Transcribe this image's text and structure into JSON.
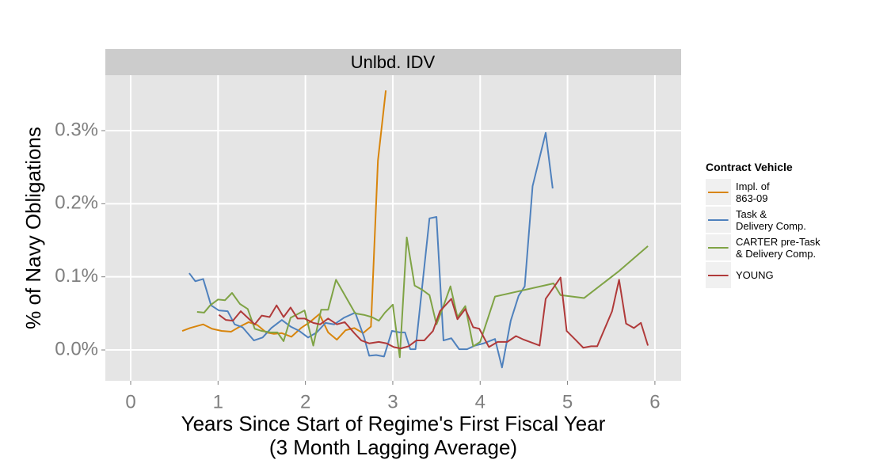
{
  "chart_data": {
    "type": "line",
    "strip": "Unlbd. IDV",
    "xlabel": "Years Since Start of Regime's First Fiscal Year\n(3 Month Lagging Average)",
    "ylabel": "% of Navy Obligations",
    "legend_title": "Contract Vehicle",
    "legend": "right",
    "grid": true,
    "xlim": [
      -0.29,
      6.3
    ],
    "xticks": [
      0,
      1,
      2,
      3,
      4,
      5,
      6
    ],
    "ylim": [
      -0.0422,
      0.3758
    ],
    "yticks": [
      {
        "value": 0,
        "label": "0.0%"
      },
      {
        "value": 0.1,
        "label": "0.1%"
      },
      {
        "value": 0.2,
        "label": "0.2%"
      },
      {
        "value": 0.3,
        "label": "0.3%"
      }
    ],
    "series": [
      {
        "name": "Impl. of\n863-09",
        "color": "#D8850C",
        "x": [
          0.59,
          0.68,
          0.83,
          0.93,
          1.04,
          1.15,
          1.25,
          1.35,
          1.45,
          1.55,
          1.64,
          1.73,
          1.84,
          1.95,
          2.05,
          2.16,
          2.26,
          2.36,
          2.46,
          2.56,
          2.66,
          2.75,
          2.83,
          2.92
        ],
        "values": [
          0.026,
          0.03,
          0.035,
          0.029,
          0.026,
          0.025,
          0.032,
          0.038,
          0.034,
          0.024,
          0.022,
          0.023,
          0.018,
          0.03,
          0.038,
          0.049,
          0.024,
          0.014,
          0.027,
          0.03,
          0.023,
          0.032,
          0.259,
          0.355
        ]
      },
      {
        "name": "Task &\nDelivery Comp.",
        "color": "#4F81BD",
        "x": [
          0.67,
          0.74,
          0.83,
          0.92,
          1.01,
          1.11,
          1.19,
          1.28,
          1.41,
          1.51,
          1.61,
          1.73,
          1.83,
          1.93,
          2.03,
          2.13,
          2.23,
          2.33,
          2.44,
          2.57,
          2.67,
          2.73,
          2.81,
          2.9,
          2.99,
          3.08,
          3.14,
          3.2,
          3.26,
          3.42,
          3.5,
          3.58,
          3.67,
          3.76,
          3.85,
          3.94,
          4.04,
          4.17,
          4.25,
          4.35,
          4.44,
          4.51,
          4.6,
          4.75,
          4.83
        ],
        "values": [
          0.105,
          0.094,
          0.097,
          0.061,
          0.054,
          0.053,
          0.035,
          0.031,
          0.013,
          0.017,
          0.03,
          0.041,
          0.032,
          0.026,
          0.017,
          0.024,
          0.037,
          0.035,
          0.044,
          0.051,
          0.018,
          -0.008,
          -0.007,
          -0.009,
          0.026,
          0.024,
          0.024,
          0.001,
          0.001,
          0.18,
          0.182,
          0.013,
          0.016,
          0.001,
          0.001,
          0.006,
          0.009,
          0.015,
          -0.024,
          0.04,
          0.074,
          0.087,
          0.224,
          0.297,
          0.221
        ]
      },
      {
        "name": "CARTER pre-Task\n& Delivery Comp.",
        "color": "#7FA345",
        "x": [
          0.76,
          0.84,
          0.91,
          1.0,
          1.08,
          1.16,
          1.25,
          1.34,
          1.42,
          1.5,
          1.6,
          1.68,
          1.75,
          1.83,
          1.99,
          2.09,
          2.18,
          2.26,
          2.35,
          2.57,
          2.67,
          2.76,
          2.84,
          2.91,
          3.0,
          3.08,
          3.16,
          3.25,
          3.34,
          3.42,
          3.5,
          3.58,
          3.66,
          3.74,
          3.83,
          3.92,
          4.0,
          4.17,
          4.84,
          4.92,
          5.19,
          5.58,
          5.92
        ],
        "values": [
          0.052,
          0.051,
          0.061,
          0.069,
          0.068,
          0.078,
          0.063,
          0.056,
          0.029,
          0.026,
          0.024,
          0.024,
          0.012,
          0.044,
          0.054,
          0.006,
          0.055,
          0.055,
          0.096,
          0.05,
          0.048,
          0.045,
          0.04,
          0.051,
          0.062,
          -0.01,
          0.154,
          0.088,
          0.082,
          0.075,
          0.035,
          0.06,
          0.087,
          0.045,
          0.06,
          0.005,
          0.011,
          0.073,
          0.091,
          0.075,
          0.071,
          0.107,
          0.142
        ]
      },
      {
        "name": "YOUNG",
        "color": "#B03A3A",
        "x": [
          1.01,
          1.09,
          1.17,
          1.26,
          1.34,
          1.42,
          1.5,
          1.59,
          1.67,
          1.75,
          1.83,
          1.91,
          1.99,
          2.09,
          2.17,
          2.26,
          2.36,
          2.45,
          2.56,
          2.64,
          2.73,
          2.84,
          2.93,
          3.01,
          3.09,
          3.18,
          3.27,
          3.36,
          3.46,
          3.54,
          3.67,
          3.74,
          3.83,
          3.92,
          3.99,
          4.1,
          4.2,
          4.31,
          4.41,
          4.5,
          4.68,
          4.75,
          4.92,
          4.99,
          5.09,
          5.18,
          5.27,
          5.34,
          5.51,
          5.59,
          5.67,
          5.76,
          5.84,
          5.92
        ],
        "values": [
          0.048,
          0.041,
          0.04,
          0.053,
          0.044,
          0.035,
          0.047,
          0.045,
          0.061,
          0.045,
          0.058,
          0.043,
          0.043,
          0.037,
          0.035,
          0.043,
          0.035,
          0.038,
          0.023,
          0.013,
          0.009,
          0.011,
          0.009,
          0.004,
          0.002,
          0.005,
          0.013,
          0.013,
          0.026,
          0.053,
          0.07,
          0.042,
          0.056,
          0.031,
          0.029,
          0.004,
          0.011,
          0.011,
          0.019,
          0.014,
          0.006,
          0.07,
          0.099,
          0.026,
          0.014,
          0.003,
          0.005,
          0.005,
          0.053,
          0.096,
          0.036,
          0.03,
          0.037,
          0.006
        ]
      }
    ]
  }
}
